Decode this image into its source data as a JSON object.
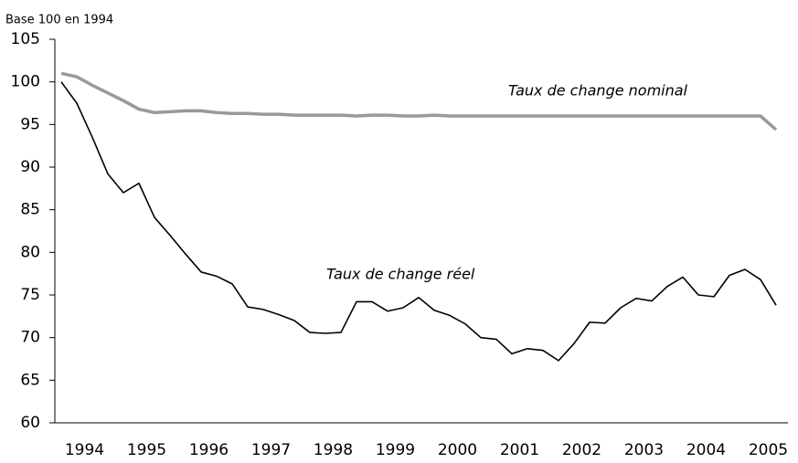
{
  "chart_data": {
    "type": "line",
    "y_axis_label": "Base 100 en 1994",
    "categories": [
      null,
      "1994",
      null,
      null,
      null,
      "1995",
      null,
      null,
      null,
      "1996",
      null,
      null,
      null,
      "1997",
      null,
      null,
      null,
      "1998",
      null,
      null,
      null,
      "1999",
      null,
      null,
      null,
      "2000",
      null,
      null,
      null,
      "2001",
      null,
      null,
      null,
      "2002",
      null,
      null,
      null,
      "2003",
      null,
      null,
      null,
      "2004",
      null,
      null,
      null,
      "2005",
      null
    ],
    "series": [
      {
        "name": "Taux de change nominal",
        "color": "#999999",
        "values": [
          101,
          100.6,
          99.6,
          98.7,
          97.8,
          96.8,
          96.4,
          96.5,
          96.6,
          96.6,
          96.4,
          96.3,
          96.3,
          96.2,
          96.2,
          96.1,
          96.1,
          96.1,
          96.1,
          96.0,
          96.1,
          96.1,
          96.0,
          96.0,
          96.1,
          96.0,
          96.0,
          96.0,
          96.0,
          96.0,
          96.0,
          96.0,
          96.0,
          96.0,
          96.0,
          96.0,
          96.0,
          96.0,
          96.0,
          96.0,
          96.0,
          96.0,
          96.0,
          96.0,
          96.0,
          96.0,
          94.4
        ]
      },
      {
        "name": "Taux de change réel",
        "color": "#000000",
        "values": [
          100,
          97.5,
          93.5,
          89.2,
          87.0,
          88.1,
          84.1,
          82.0,
          79.8,
          77.7,
          77.2,
          76.3,
          73.6,
          73.3,
          72.7,
          72.0,
          70.6,
          70.5,
          70.6,
          74.2,
          74.2,
          73.1,
          73.5,
          74.7,
          73.2,
          72.6,
          71.6,
          70.0,
          69.8,
          68.1,
          68.7,
          68.5,
          67.3,
          69.3,
          71.8,
          71.7,
          73.5,
          74.6,
          74.3,
          76.0,
          77.1,
          75.0,
          74.8,
          77.3,
          78.0,
          76.8,
          73.8
        ]
      }
    ],
    "ylim": [
      60,
      105
    ],
    "yticks": [
      60,
      65,
      70,
      75,
      80,
      85,
      90,
      95,
      100,
      105
    ]
  }
}
